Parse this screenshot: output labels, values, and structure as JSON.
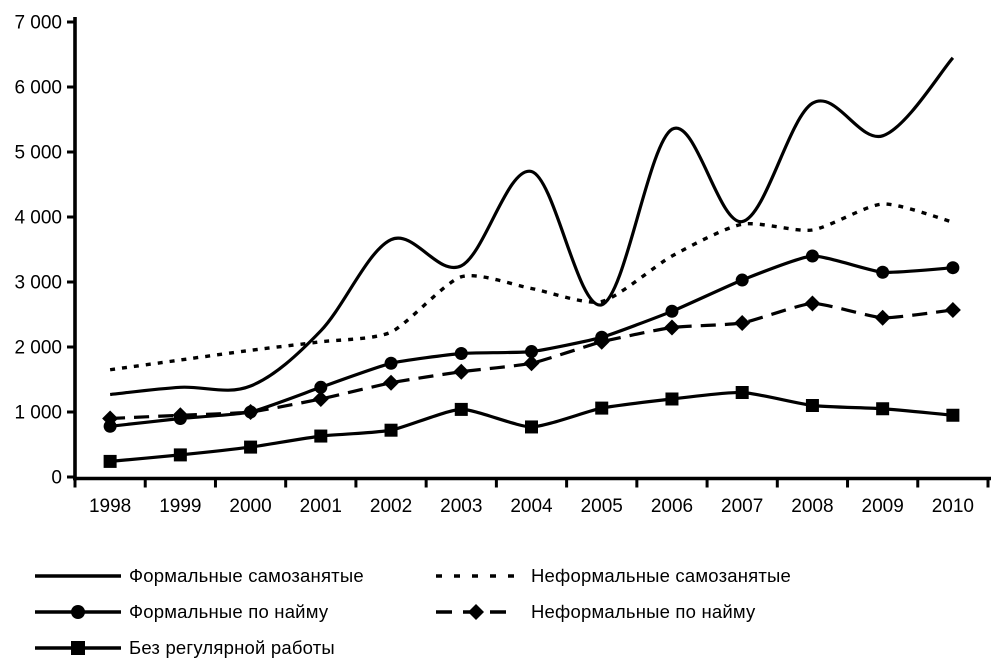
{
  "chart_data": {
    "type": "line",
    "title": "",
    "xlabel": "",
    "ylabel": "",
    "background": "#ffffff",
    "line_color": "#000000",
    "grid": false,
    "legend_position": "bottom",
    "x": [
      "1998",
      "1999",
      "2000",
      "2001",
      "2002",
      "2003",
      "2004",
      "2005",
      "2006",
      "2007",
      "2008",
      "2009",
      "2010"
    ],
    "ylim": [
      0,
      7000
    ],
    "ytick_step": 1000,
    "ytick_labels": [
      "0",
      "1 000",
      "2 000",
      "3 000",
      "4 000",
      "5 000",
      "6 000",
      "7 000"
    ],
    "series": [
      {
        "name": "Формальные самозанятые",
        "style": "solid",
        "marker": "none",
        "smooth": 1.0,
        "values": [
          1270,
          1380,
          1400,
          2250,
          3650,
          3250,
          4700,
          2650,
          5350,
          3930,
          5750,
          5250,
          6450
        ]
      },
      {
        "name": "Неформальные самозанятые",
        "style": "dotted",
        "marker": "none",
        "smooth": 0.7,
        "values": [
          1650,
          1800,
          1950,
          2080,
          2230,
          3080,
          2900,
          2700,
          3400,
          3890,
          3800,
          4200,
          3920
        ]
      },
      {
        "name": "Формальные по найму",
        "style": "solid",
        "marker": "circle",
        "smooth": 0.5,
        "values": [
          780,
          900,
          1000,
          1380,
          1750,
          1900,
          1930,
          2150,
          2550,
          3030,
          3400,
          3150,
          3220
        ]
      },
      {
        "name": "Неформальные по найму",
        "style": "dashed",
        "marker": "diamond",
        "smooth": 0.5,
        "values": [
          900,
          950,
          1000,
          1200,
          1450,
          1620,
          1750,
          2080,
          2300,
          2370,
          2670,
          2450,
          2570
        ]
      },
      {
        "name": "Без регулярной работы",
        "style": "solid",
        "marker": "square",
        "smooth": 0.6,
        "values": [
          240,
          340,
          460,
          630,
          720,
          1040,
          770,
          1060,
          1200,
          1300,
          1100,
          1050,
          950
        ]
      }
    ]
  }
}
